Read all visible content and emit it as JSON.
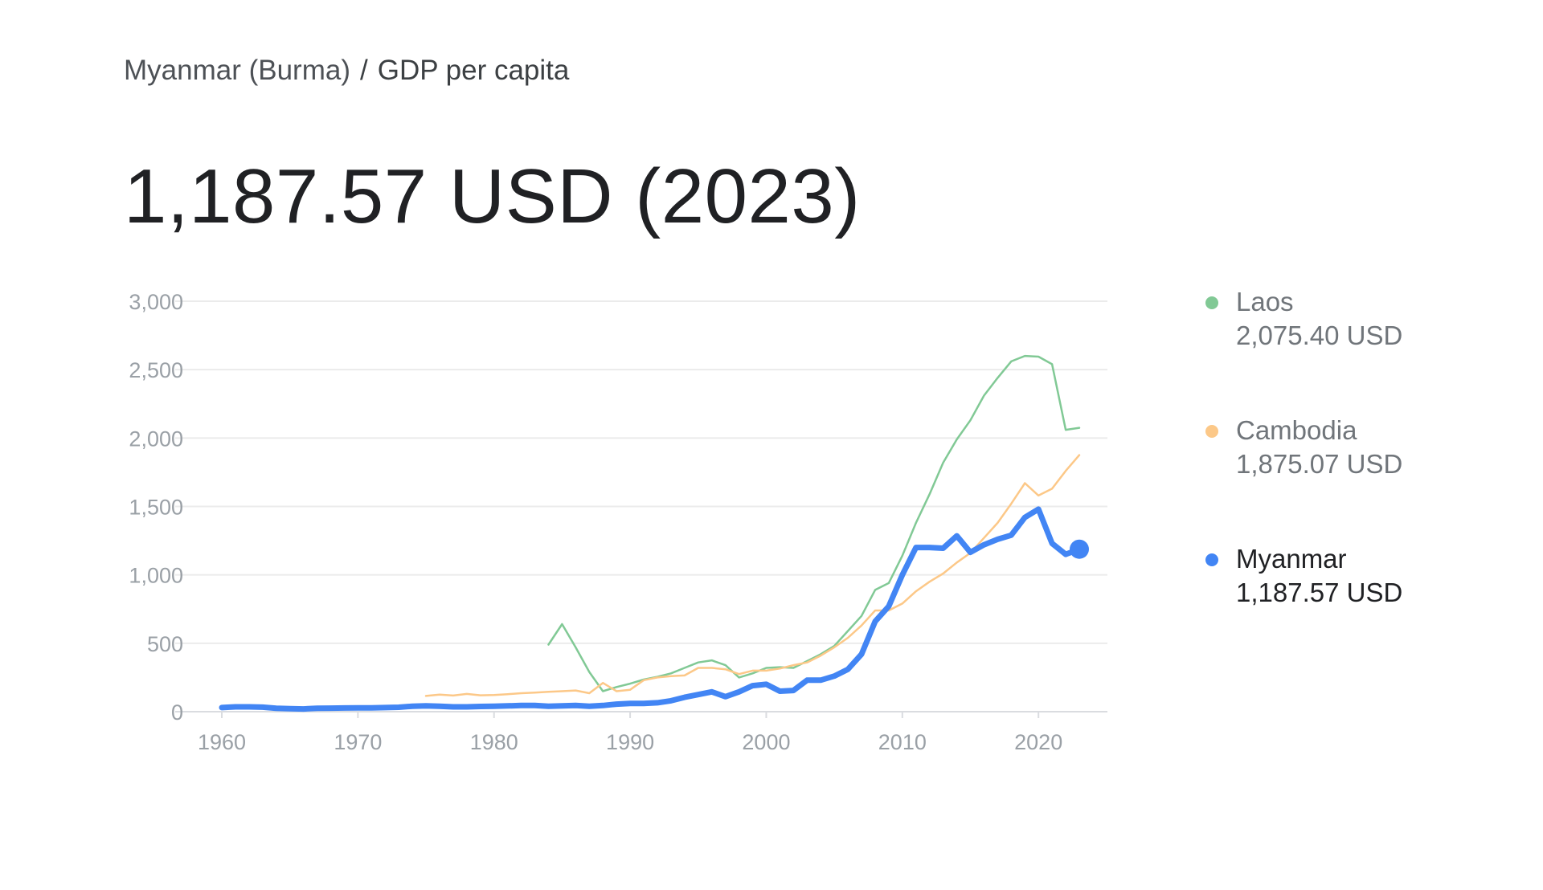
{
  "breadcrumb": {
    "parent": "Myanmar (Burma)",
    "separator": "/",
    "current": "GDP per capita"
  },
  "headline": {
    "value": "1,187.57 USD (2023)"
  },
  "legend": [
    {
      "name": "Laos",
      "value": "2,075.40 USD",
      "color": "#81c995"
    },
    {
      "name": "Cambodia",
      "value": "1,875.07 USD",
      "color": "#fcc888"
    },
    {
      "name": "Myanmar",
      "value": "1,187.57 USD",
      "color": "#4285f4"
    }
  ],
  "chart_data": {
    "type": "line",
    "title": "",
    "xlabel": "",
    "ylabel": "",
    "xlim": [
      1960,
      2023
    ],
    "ylim": [
      0,
      3000
    ],
    "x_ticks": [
      1960,
      1970,
      1980,
      1990,
      2000,
      2010,
      2020
    ],
    "x_tick_labels": [
      "1960",
      "1970",
      "1980",
      "1990",
      "2000",
      "2010",
      "2020"
    ],
    "y_ticks": [
      0,
      500,
      1000,
      1500,
      2000,
      2500,
      3000
    ],
    "y_tick_labels": [
      "0",
      "500",
      "1,000",
      "1,500",
      "2,000",
      "2,500",
      "3,000"
    ],
    "grid": "horizontal",
    "legend_position": "right",
    "series": [
      {
        "name": "Laos",
        "color": "#81c995",
        "x": [
          1984,
          1985,
          1986,
          1987,
          1988,
          1989,
          1990,
          1991,
          1992,
          1993,
          1994,
          1995,
          1996,
          1997,
          1998,
          1999,
          2000,
          2001,
          2002,
          2003,
          2004,
          2005,
          2006,
          2007,
          2008,
          2009,
          2010,
          2011,
          2012,
          2013,
          2014,
          2015,
          2016,
          2017,
          2018,
          2019,
          2020,
          2021,
          2022,
          2023
        ],
        "values": [
          490,
          640,
          470,
          290,
          150,
          180,
          205,
          235,
          255,
          280,
          320,
          360,
          375,
          340,
          250,
          280,
          320,
          325,
          320,
          370,
          420,
          480,
          590,
          700,
          890,
          940,
          1140,
          1380,
          1590,
          1820,
          1990,
          2130,
          2310,
          2440,
          2560,
          2600,
          2595,
          2540,
          2060,
          2075
        ]
      },
      {
        "name": "Cambodia",
        "color": "#fcc888",
        "x": [
          1975,
          1976,
          1977,
          1978,
          1979,
          1980,
          1981,
          1982,
          1983,
          1984,
          1985,
          1986,
          1987,
          1988,
          1989,
          1990,
          1991,
          1992,
          1993,
          1994,
          1995,
          1996,
          1997,
          1998,
          1999,
          2000,
          2001,
          2002,
          2003,
          2004,
          2005,
          2006,
          2007,
          2008,
          2009,
          2010,
          2011,
          2012,
          2013,
          2014,
          2015,
          2016,
          2017,
          2018,
          2019,
          2020,
          2021,
          2022,
          2023
        ],
        "values": [
          115,
          125,
          118,
          130,
          120,
          122,
          128,
          135,
          140,
          145,
          150,
          155,
          135,
          210,
          150,
          160,
          230,
          250,
          260,
          265,
          320,
          320,
          310,
          275,
          300,
          300,
          315,
          340,
          360,
          410,
          470,
          540,
          630,
          740,
          740,
          790,
          880,
          950,
          1010,
          1090,
          1160,
          1270,
          1380,
          1520,
          1670,
          1580,
          1630,
          1760,
          1875
        ]
      },
      {
        "name": "Myanmar",
        "color": "#4285f4",
        "x": [
          1960,
          1961,
          1962,
          1963,
          1964,
          1965,
          1966,
          1967,
          1968,
          1969,
          1970,
          1971,
          1972,
          1973,
          1974,
          1975,
          1976,
          1977,
          1978,
          1979,
          1980,
          1981,
          1982,
          1983,
          1984,
          1985,
          1986,
          1987,
          1988,
          1989,
          1990,
          1991,
          1992,
          1993,
          1994,
          1995,
          1996,
          1997,
          1998,
          1999,
          2000,
          2001,
          2002,
          2003,
          2004,
          2005,
          2006,
          2007,
          2008,
          2009,
          2010,
          2011,
          2012,
          2013,
          2014,
          2015,
          2016,
          2017,
          2018,
          2019,
          2020,
          2021,
          2022,
          2023
        ],
        "values": [
          30,
          35,
          35,
          33,
          25,
          22,
          20,
          25,
          26,
          27,
          28,
          28,
          30,
          32,
          40,
          42,
          40,
          35,
          35,
          38,
          40,
          42,
          45,
          45,
          40,
          42,
          45,
          40,
          45,
          55,
          60,
          60,
          65,
          80,
          105,
          125,
          145,
          110,
          145,
          190,
          200,
          150,
          155,
          230,
          230,
          260,
          310,
          420,
          660,
          770,
          1000,
          1200,
          1200,
          1195,
          1285,
          1165,
          1220,
          1260,
          1290,
          1420,
          1480,
          1230,
          1150,
          1187.57
        ]
      }
    ]
  }
}
